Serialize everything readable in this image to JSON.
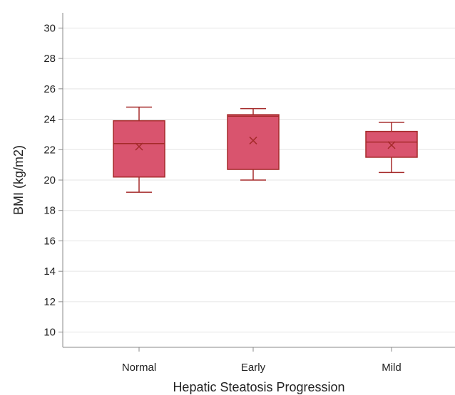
{
  "chart_data": {
    "type": "box",
    "xlabel": "Hepatic Steatosis Progression",
    "ylabel": "BMI (kg/m2)",
    "ylim": [
      9,
      31
    ],
    "yticks": [
      "10",
      "12",
      "14",
      "16",
      "18",
      "20",
      "22",
      "24",
      "26",
      "28",
      "30"
    ],
    "grid": true,
    "categories": [
      "Normal",
      "Early",
      "Mild"
    ],
    "boxes": [
      {
        "category": "Normal",
        "min": 19.2,
        "q1": 20.2,
        "median": 22.4,
        "q3": 23.9,
        "max": 24.8,
        "mean": 22.2
      },
      {
        "category": "Early",
        "min": 20.0,
        "q1": 20.7,
        "median": 24.2,
        "q3": 24.3,
        "max": 24.7,
        "mean": 22.6
      },
      {
        "category": "Mild",
        "min": 20.5,
        "q1": 21.5,
        "median": 22.5,
        "q3": 23.2,
        "max": 23.8,
        "mean": 22.3
      }
    ],
    "colors": {
      "box_fill": "#d9546e",
      "box_stroke": "#a52a2a",
      "grid": "#e5e5e5",
      "axis": "#888888"
    }
  }
}
